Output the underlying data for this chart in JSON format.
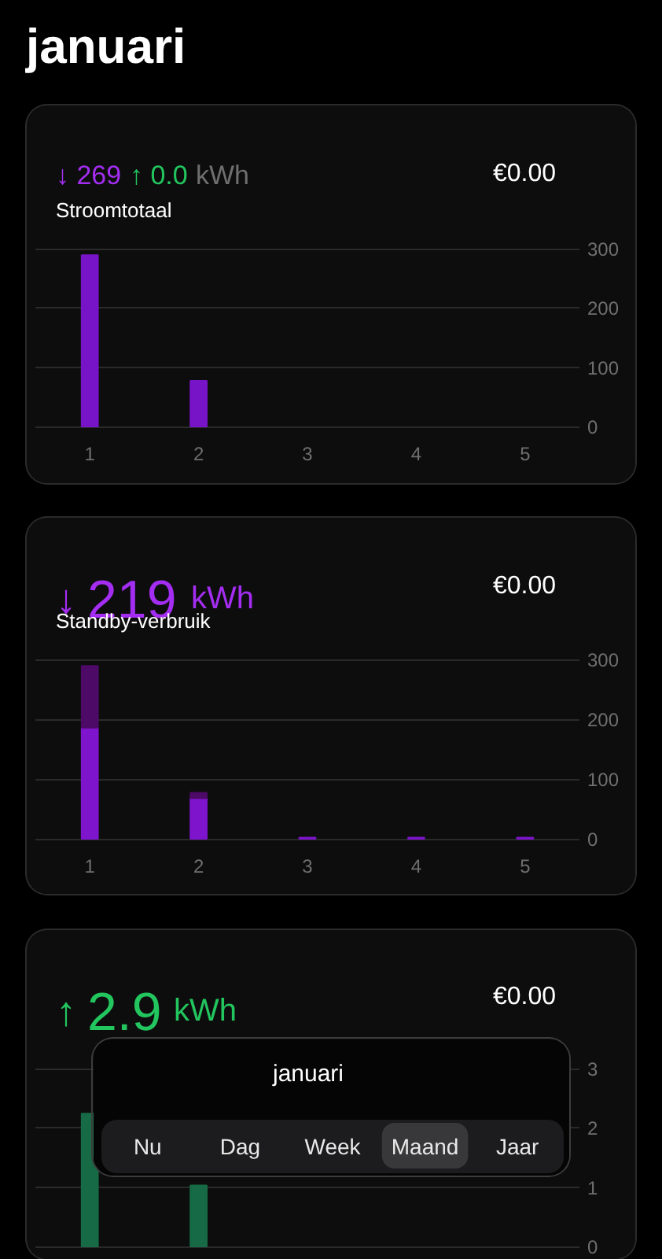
{
  "chart_data": [
    {
      "type": "other",
      "title": "januari"
    },
    {
      "type": "bar",
      "title": "Stroomtotaal",
      "annotations": [
        "↓ 269",
        "↑ 0.0",
        "kWh",
        "€0.00"
      ],
      "categories": [
        "1",
        "2",
        "3",
        "4",
        "5"
      ],
      "series": [
        {
          "color": "#7814c8",
          "values": [
            289,
            77,
            null,
            null,
            null
          ]
        }
      ],
      "ylim": [
        0,
        300
      ],
      "yticks": [
        0,
        100,
        200,
        300
      ],
      "grid": "y"
    },
    {
      "type": "bar",
      "title": "Standby-verbruik",
      "annotations": [
        "↓",
        "219",
        "kWh",
        "€0.00"
      ],
      "categories": [
        "1",
        "2",
        "3",
        "4",
        "5"
      ],
      "stacked": true,
      "series": [
        {
          "color": "#7e14cc",
          "values": [
            186,
            68,
            2,
            2,
            2
          ]
        },
        {
          "color": "#4d0a66",
          "values": [
            103,
            9,
            null,
            null,
            null
          ]
        }
      ],
      "ylim": [
        0,
        300
      ],
      "yticks": [
        0,
        100,
        200,
        300
      ],
      "grid": "y"
    },
    {
      "type": "bar",
      "annotations": [
        "↑",
        "2.9",
        "kWh",
        "€0.00"
      ],
      "categories": [
        null,
        null,
        null,
        null,
        null
      ],
      "series": [
        {
          "color": "#166b46",
          "values": [
            2.24,
            1.03,
            null,
            null,
            null
          ]
        }
      ],
      "ylim": [
        0,
        3
      ],
      "yticks": [
        0,
        1,
        2,
        3
      ],
      "grid": "y",
      "tick_labels": "y"
    },
    {
      "type": "other",
      "title": "januari",
      "annotations": [
        "Nu",
        "Dag",
        "Week",
        "Maand",
        "Jaar"
      ]
    }
  ]
}
